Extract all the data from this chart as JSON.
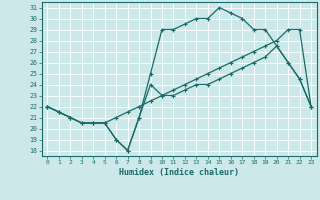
{
  "title": "",
  "xlabel": "Humidex (Indice chaleur)",
  "ylabel": "",
  "bg_color": "#cce8e8",
  "grid_color": "#b0d0d0",
  "line_color": "#1a6b6b",
  "xlim": [
    -0.5,
    23.5
  ],
  "ylim": [
    17.5,
    31.5
  ],
  "xticks": [
    0,
    1,
    2,
    3,
    4,
    5,
    6,
    7,
    8,
    9,
    10,
    11,
    12,
    13,
    14,
    15,
    16,
    17,
    18,
    19,
    20,
    21,
    22,
    23
  ],
  "yticks": [
    18,
    19,
    20,
    21,
    22,
    23,
    24,
    25,
    26,
    27,
    28,
    29,
    30,
    31
  ],
  "line1_x": [
    0,
    1,
    2,
    3,
    4,
    5,
    6,
    7,
    8,
    9,
    10,
    11,
    12,
    13,
    14,
    15,
    16,
    17,
    18,
    19,
    20,
    21,
    22,
    23
  ],
  "line1_y": [
    22,
    21.5,
    21,
    20.5,
    20.5,
    20.5,
    19,
    18,
    21,
    25,
    29,
    29,
    29.5,
    30,
    30,
    31,
    30.5,
    30,
    29,
    29,
    27.5,
    26,
    24.5,
    22
  ],
  "line2_x": [
    0,
    1,
    2,
    3,
    4,
    5,
    6,
    7,
    8,
    9,
    10,
    11,
    12,
    13,
    14,
    15,
    16,
    17,
    18,
    19,
    20,
    21,
    22,
    23
  ],
  "line2_y": [
    22,
    21.5,
    21,
    20.5,
    20.5,
    20.5,
    19,
    18,
    21,
    24,
    23,
    23,
    23.5,
    24,
    24,
    24.5,
    25,
    25.5,
    26,
    26.5,
    27.5,
    26,
    24.5,
    22
  ],
  "line3_x": [
    0,
    1,
    2,
    3,
    4,
    5,
    6,
    7,
    8,
    9,
    10,
    11,
    12,
    13,
    14,
    15,
    16,
    17,
    18,
    19,
    20,
    21,
    22,
    23
  ],
  "line3_y": [
    22,
    21.5,
    21,
    20.5,
    20.5,
    20.5,
    21,
    21.5,
    22,
    22.5,
    23,
    23.5,
    24,
    24.5,
    25,
    25.5,
    26,
    26.5,
    27,
    27.5,
    28,
    29,
    29,
    22
  ]
}
